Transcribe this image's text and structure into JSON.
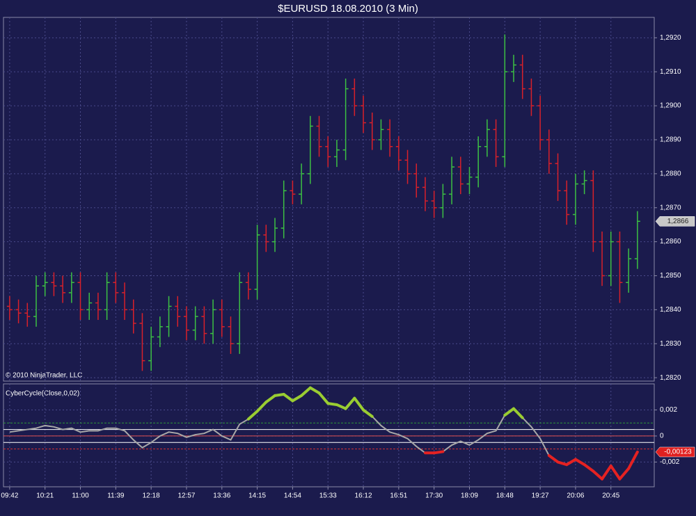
{
  "chart_data": [
    {
      "type": "ohlc",
      "title": "$EURUSD  18.08.2010 (3 Min)",
      "copyright": "© 2010 NinjaTrader, LLC",
      "up_color": "#3cc043",
      "down_color": "#d8202a",
      "xlim": [
        -0.7,
        72.9
      ],
      "xticks": [
        {
          "value": 0,
          "label": "09:42"
        },
        {
          "value": 4,
          "label": "10:21"
        },
        {
          "value": 8,
          "label": "11:00"
        },
        {
          "value": 12,
          "label": "11:39"
        },
        {
          "value": 16,
          "label": "12:18"
        },
        {
          "value": 20,
          "label": "12:57"
        },
        {
          "value": 24,
          "label": "13:36"
        },
        {
          "value": 28,
          "label": "14:15"
        },
        {
          "value": 32,
          "label": "14:54"
        },
        {
          "value": 36,
          "label": "15:33"
        },
        {
          "value": 40,
          "label": "16:12"
        },
        {
          "value": 44,
          "label": "16:51"
        },
        {
          "value": 48,
          "label": "17:30"
        },
        {
          "value": 52,
          "label": "18:09"
        },
        {
          "value": 56,
          "label": "18:48"
        },
        {
          "value": 60,
          "label": "19:27"
        },
        {
          "value": 64,
          "label": "20:06"
        },
        {
          "value": 68,
          "label": "20:45"
        }
      ],
      "ylim": [
        1.2819,
        1.2926
      ],
      "yticks": [
        {
          "value": 1.282,
          "label": "1,2820"
        },
        {
          "value": 1.283,
          "label": "1,2830"
        },
        {
          "value": 1.284,
          "label": "1,2840"
        },
        {
          "value": 1.285,
          "label": "1,2850"
        },
        {
          "value": 1.286,
          "label": "1,2860"
        },
        {
          "value": 1.287,
          "label": "1,2870"
        },
        {
          "value": 1.288,
          "label": "1,2880"
        },
        {
          "value": 1.289,
          "label": "1,2890"
        },
        {
          "value": 1.29,
          "label": "1,2900"
        },
        {
          "value": 1.291,
          "label": "1,2910"
        },
        {
          "value": 1.292,
          "label": "1,2920"
        }
      ],
      "grid": true,
      "last_label": {
        "value": 1.2866,
        "label": "1,2866"
      },
      "open": [
        1.2841,
        1.284,
        1.2839,
        1.2838,
        1.2847,
        1.2848,
        1.2847,
        1.2845,
        1.2848,
        1.284,
        1.2842,
        1.284,
        1.2848,
        1.2845,
        1.284,
        1.2836,
        1.2825,
        1.2832,
        1.2835,
        1.2841,
        1.2838,
        1.2834,
        1.2838,
        1.2833,
        1.284,
        1.2835,
        1.283,
        1.2848,
        1.2846,
        1.2862,
        1.286,
        1.2864,
        1.2875,
        1.2874,
        1.288,
        1.2894,
        1.2888,
        1.2885,
        1.2887,
        1.2905,
        1.29,
        1.2895,
        1.289,
        1.2893,
        1.2888,
        1.2884,
        1.288,
        1.2876,
        1.2872,
        1.287,
        1.2874,
        1.2882,
        1.2877,
        1.2879,
        1.2888,
        1.2893,
        1.2885,
        1.291,
        1.2912,
        1.2905,
        1.29,
        1.289,
        1.2883,
        1.2875,
        1.2868,
        1.2877,
        1.2878,
        1.286,
        1.285,
        1.286,
        1.2848,
        1.2855
      ],
      "high": [
        1.2844,
        1.2843,
        1.2842,
        1.285,
        1.2851,
        1.2851,
        1.285,
        1.2851,
        1.2851,
        1.2845,
        1.2845,
        1.2851,
        1.2851,
        1.2848,
        1.2843,
        1.2839,
        1.2835,
        1.2838,
        1.2844,
        1.2844,
        1.2841,
        1.2841,
        1.2841,
        1.2843,
        1.2843,
        1.2838,
        1.2851,
        1.2851,
        1.2865,
        1.2865,
        1.2867,
        1.2878,
        1.2878,
        1.2883,
        1.2897,
        1.2897,
        1.2891,
        1.289,
        1.2908,
        1.2908,
        1.2903,
        1.2898,
        1.2896,
        1.2896,
        1.2891,
        1.2887,
        1.2883,
        1.2879,
        1.2875,
        1.2877,
        1.2885,
        1.2885,
        1.2882,
        1.2891,
        1.2896,
        1.2896,
        1.2921,
        1.2915,
        1.2915,
        1.2908,
        1.2903,
        1.2893,
        1.2886,
        1.2878,
        1.288,
        1.2881,
        1.2881,
        1.2863,
        1.2863,
        1.2863,
        1.2858,
        1.2869
      ],
      "low": [
        1.2837,
        1.2836,
        1.2835,
        1.2835,
        1.2844,
        1.2844,
        1.2842,
        1.2842,
        1.2837,
        1.2837,
        1.2837,
        1.2837,
        1.2842,
        1.2837,
        1.2833,
        1.2822,
        1.2822,
        1.2829,
        1.2832,
        1.2835,
        1.2831,
        1.2831,
        1.283,
        1.283,
        1.2832,
        1.2827,
        1.2827,
        1.2843,
        1.2843,
        1.2857,
        1.2857,
        1.2861,
        1.2871,
        1.2871,
        1.2877,
        1.2885,
        1.2882,
        1.2882,
        1.2884,
        1.2897,
        1.2892,
        1.2887,
        1.2887,
        1.2885,
        1.2881,
        1.2877,
        1.2873,
        1.2869,
        1.2867,
        1.2867,
        1.2871,
        1.2874,
        1.2874,
        1.2876,
        1.2885,
        1.2882,
        1.2882,
        1.2907,
        1.2902,
        1.2897,
        1.2887,
        1.288,
        1.2872,
        1.2865,
        1.2865,
        1.2874,
        1.2857,
        1.2847,
        1.2847,
        1.2842,
        1.2845,
        1.2852
      ],
      "close": [
        1.284,
        1.2839,
        1.2838,
        1.2847,
        1.2848,
        1.2847,
        1.2845,
        1.2848,
        1.284,
        1.2842,
        1.284,
        1.2848,
        1.2845,
        1.284,
        1.2836,
        1.2825,
        1.2832,
        1.2835,
        1.2841,
        1.2838,
        1.2834,
        1.2838,
        1.2833,
        1.284,
        1.2835,
        1.283,
        1.2848,
        1.2846,
        1.2862,
        1.286,
        1.2864,
        1.2875,
        1.2874,
        1.288,
        1.2894,
        1.2888,
        1.2885,
        1.2887,
        1.2905,
        1.29,
        1.2895,
        1.289,
        1.2893,
        1.2888,
        1.2884,
        1.288,
        1.2876,
        1.2872,
        1.287,
        1.2874,
        1.2882,
        1.2877,
        1.2879,
        1.2888,
        1.2893,
        1.2885,
        1.291,
        1.2912,
        1.2905,
        1.29,
        1.289,
        1.2883,
        1.2875,
        1.2868,
        1.2877,
        1.2878,
        1.286,
        1.285,
        1.286,
        1.2848,
        1.2855,
        1.2866
      ]
    },
    {
      "type": "line",
      "title": "CyberCycle(Close,0,02)",
      "ylim": [
        -0.0039,
        0.004
      ],
      "yticks": [
        {
          "value": -0.002,
          "label": "-0,002"
        },
        0,
        {
          "value": 0.002,
          "label": "0,002"
        }
      ],
      "grid": true,
      "neutral_color": "#a8a8a8",
      "up_color": "#9acd32",
      "down_color": "#e52222",
      "levels": [
        {
          "value": 0.001,
          "color": "#2e9a3a",
          "dash": true
        },
        {
          "value": -0.001,
          "color": "#d83030",
          "dash": true
        },
        {
          "value": 0.0005,
          "color": "#ffffff",
          "dash": false
        },
        {
          "value": -0.0005,
          "color": "#ffffff",
          "dash": false
        },
        {
          "value": 0,
          "color": "#e05050",
          "dash": false
        }
      ],
      "last_label": {
        "value": -0.00123,
        "label": "-0,00123"
      },
      "values": [
        0.0003,
        0.0004,
        0.0005,
        0.0006,
        0.0008,
        0.0007,
        0.0005,
        0.0006,
        0.0003,
        0.0004,
        0.0004,
        0.0006,
        0.0006,
        0.0004,
        -0.0003,
        -0.0009,
        -0.0005,
        0,
        0.0003,
        0.0002,
        -0.0001,
        0.0001,
        0.0002,
        0.0005,
        0,
        -0.0003,
        0.0009,
        0.0013,
        0.0019,
        0.0026,
        0.0031,
        0.0032,
        0.0027,
        0.0031,
        0.0037,
        0.0033,
        0.0025,
        0.0024,
        0.0021,
        0.0029,
        0.002,
        0.0015,
        0.0008,
        0.0003,
        0.0001,
        -0.0002,
        -0.0008,
        -0.0013,
        -0.0013,
        -0.0012,
        -0.0007,
        -0.0004,
        -0.0007,
        -0.0003,
        0.0002,
        0.0004,
        0.0016,
        0.0021,
        0.0014,
        0.0007,
        -0.0002,
        -0.0015,
        -0.002,
        -0.0022,
        -0.0018,
        -0.0022,
        -0.0027,
        -0.0033,
        -0.0023,
        -0.0033,
        -0.0025,
        -0.00123
      ]
    }
  ]
}
